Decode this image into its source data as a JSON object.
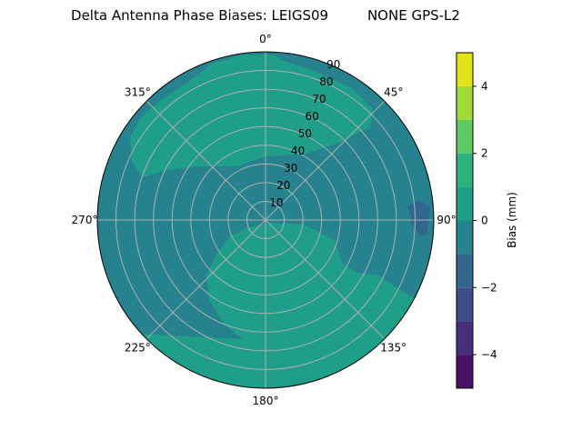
{
  "chart_data": {
    "type": "contour",
    "projection": "polar",
    "title": "Delta Antenna Phase Biases: LEIGS09         NONE GPS-L2",
    "theta_direction": "clockwise",
    "theta_zero": "north",
    "theta_tick_labels": [
      "0°",
      "45°",
      "90°",
      "135°",
      "180°",
      "225°",
      "270°",
      "315°"
    ],
    "theta_ticks": [
      0,
      45,
      90,
      135,
      180,
      225,
      270,
      315
    ],
    "r_ticks": [
      10,
      20,
      30,
      40,
      50,
      60,
      70,
      80,
      90
    ],
    "r_tick_labels": [
      "10",
      "20",
      "30",
      "40",
      "50",
      "60",
      "70",
      "80",
      "90"
    ],
    "rlim": [
      0,
      90
    ],
    "grid": true,
    "colorbar": {
      "label": "Bias (mm)",
      "levels": [
        -5,
        -4,
        -3,
        -2,
        -1,
        0,
        1,
        2,
        3,
        4,
        5
      ],
      "tick_values": [
        -4,
        -2,
        0,
        2,
        4
      ],
      "tick_labels": [
        "−4",
        "−2",
        "0",
        "2",
        "4"
      ],
      "colors": [
        "#471164",
        "#472f7d",
        "#3e4c8a",
        "#31678e",
        "#26828e",
        "#1f9e89",
        "#2db27d",
        "#5ec962",
        "#a0da39",
        "#e3e418"
      ],
      "colormap": "viridis"
    },
    "regions": [
      {
        "level_range": [
          -1,
          0
        ],
        "description": "background"
      },
      {
        "level_range": [
          0,
          1
        ],
        "location": "north-west to north-east, elevation band"
      },
      {
        "level_range": [
          0,
          1
        ],
        "location": "south, from center to horizon"
      },
      {
        "level_range": [
          -2,
          -1
        ],
        "location": "east near horizon"
      }
    ]
  }
}
